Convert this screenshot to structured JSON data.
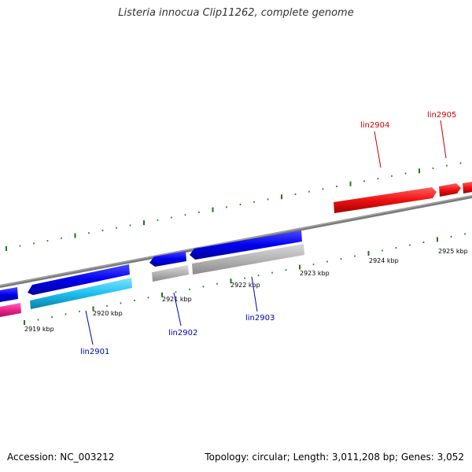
{
  "title": "Listeria innocua Clip11262, complete genome",
  "colors": {
    "backbone": "#808080",
    "tick": "#1a7a1a",
    "forward_gene": "#0000ee",
    "reverse_gene_blue": "#0000ee",
    "reverse_gene_gray": "#b0b0b0",
    "cyan_gene": "#1ec0f0",
    "pink_gene": "#f0208c",
    "red_gene": "#ee1111",
    "label_blue": "#0000aa",
    "label_red": "#cc0000"
  },
  "axis": {
    "tick_labels": [
      "2919 kbp",
      "2920 kbp",
      "2921 kbp",
      "2922 kbp",
      "2923 kbp",
      "2924 kbp",
      "2925 kbp"
    ]
  },
  "genes": {
    "labels": [
      "lin2901",
      "lin2902",
      "lin2903",
      "lin2904",
      "lin2905"
    ]
  },
  "footer": {
    "accession": "Accession: NC_003212",
    "summary": "Topology: circular; Length: 3,011,208 bp; Genes: 3,052"
  }
}
